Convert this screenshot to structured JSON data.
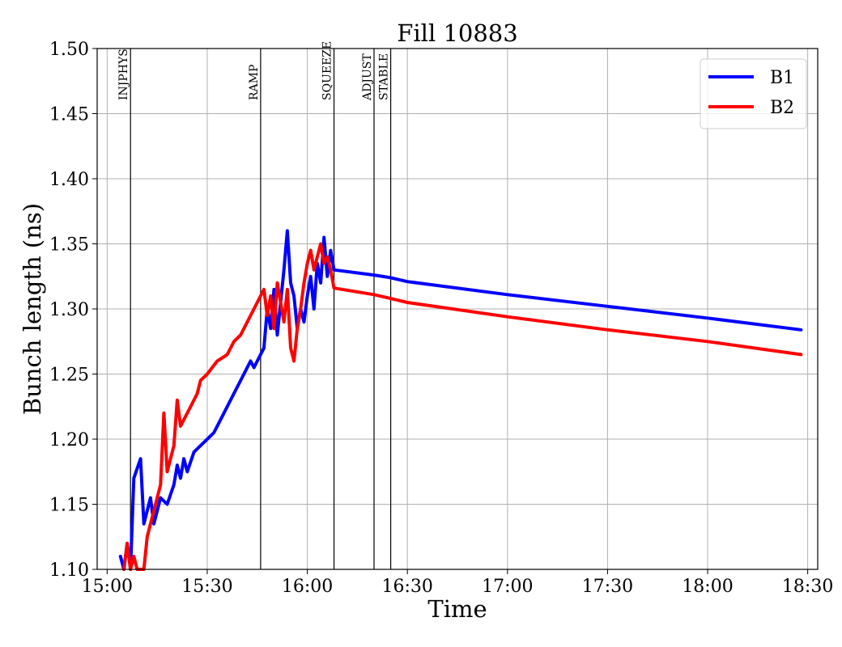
{
  "chart_data": {
    "type": "line",
    "title": "Fill 10883",
    "xlabel": "Time",
    "ylabel": "Bunch length (ns)",
    "x_tick_labels": [
      "15:00",
      "15:30",
      "16:00",
      "16:30",
      "17:00",
      "17:30",
      "18:00",
      "18:30"
    ],
    "x_tick_values": [
      "15:00",
      "15:30",
      "16:00",
      "16:30",
      "17:00",
      "17:30",
      "18:00",
      "18:30"
    ],
    "xlim": [
      "14:57",
      "18:33"
    ],
    "y_tick_labels": [
      "1.10",
      "1.15",
      "1.20",
      "1.25",
      "1.30",
      "1.35",
      "1.40",
      "1.45",
      "1.50"
    ],
    "ylim": [
      1.1,
      1.5
    ],
    "grid": true,
    "legend_position": "top-right",
    "mode_markers": [
      {
        "label": "INJPHYS",
        "time": "15:07"
      },
      {
        "label": "RAMP",
        "time": "15:46"
      },
      {
        "label": "SQUEEZE",
        "time": "16:08"
      },
      {
        "label": "ADJUST",
        "time": "16:20"
      },
      {
        "label": "STABLE",
        "time": "16:25"
      }
    ],
    "series": [
      {
        "name": "B1",
        "color": "#0000ff",
        "points": [
          [
            "15:04",
            1.11
          ],
          [
            "15:05",
            1.1
          ],
          [
            "15:06",
            1.12
          ],
          [
            "15:07",
            1.1
          ],
          [
            "15:08",
            1.17
          ],
          [
            "15:10",
            1.185
          ],
          [
            "15:11",
            1.135
          ],
          [
            "15:13",
            1.155
          ],
          [
            "15:14",
            1.135
          ],
          [
            "15:16",
            1.155
          ],
          [
            "15:18",
            1.15
          ],
          [
            "15:20",
            1.165
          ],
          [
            "15:21",
            1.18
          ],
          [
            "15:22",
            1.17
          ],
          [
            "15:23",
            1.185
          ],
          [
            "15:24",
            1.175
          ],
          [
            "15:26",
            1.19
          ],
          [
            "15:28",
            1.195
          ],
          [
            "15:30",
            1.2
          ],
          [
            "15:32",
            1.205
          ],
          [
            "15:35",
            1.22
          ],
          [
            "15:38",
            1.235
          ],
          [
            "15:40",
            1.245
          ],
          [
            "15:43",
            1.26
          ],
          [
            "15:44",
            1.255
          ],
          [
            "15:45",
            1.26
          ],
          [
            "15:46",
            1.265
          ],
          [
            "15:47",
            1.27
          ],
          [
            "15:48",
            1.3
          ],
          [
            "15:49",
            1.285
          ],
          [
            "15:50",
            1.315
          ],
          [
            "15:51",
            1.28
          ],
          [
            "15:52",
            1.305
          ],
          [
            "15:53",
            1.33
          ],
          [
            "15:54",
            1.36
          ],
          [
            "15:55",
            1.32
          ],
          [
            "15:56",
            1.31
          ],
          [
            "15:57",
            1.285
          ],
          [
            "15:58",
            1.3
          ],
          [
            "15:59",
            1.29
          ],
          [
            "16:00",
            1.31
          ],
          [
            "16:01",
            1.325
          ],
          [
            "16:02",
            1.3
          ],
          [
            "16:03",
            1.335
          ],
          [
            "16:04",
            1.32
          ],
          [
            "16:05",
            1.355
          ],
          [
            "16:06",
            1.325
          ],
          [
            "16:07",
            1.345
          ],
          [
            "16:08",
            1.33
          ],
          [
            "16:20",
            1.326
          ],
          [
            "16:25",
            1.324
          ],
          [
            "16:30",
            1.321
          ],
          [
            "17:00",
            1.311
          ],
          [
            "17:30",
            1.302
          ],
          [
            "18:00",
            1.293
          ],
          [
            "18:28",
            1.284
          ]
        ]
      },
      {
        "name": "B2",
        "color": "#ff0000",
        "points": [
          [
            "15:05",
            1.1
          ],
          [
            "15:06",
            1.12
          ],
          [
            "15:07",
            1.1
          ],
          [
            "15:08",
            1.11
          ],
          [
            "15:09",
            1.1
          ],
          [
            "15:11",
            1.1
          ],
          [
            "15:12",
            1.125
          ],
          [
            "15:14",
            1.145
          ],
          [
            "15:16",
            1.165
          ],
          [
            "15:17",
            1.22
          ],
          [
            "15:18",
            1.175
          ],
          [
            "15:19",
            1.185
          ],
          [
            "15:20",
            1.195
          ],
          [
            "15:21",
            1.23
          ],
          [
            "15:22",
            1.21
          ],
          [
            "15:25",
            1.225
          ],
          [
            "15:27",
            1.235
          ],
          [
            "15:28",
            1.245
          ],
          [
            "15:30",
            1.25
          ],
          [
            "15:33",
            1.26
          ],
          [
            "15:36",
            1.265
          ],
          [
            "15:38",
            1.275
          ],
          [
            "15:40",
            1.28
          ],
          [
            "15:43",
            1.295
          ],
          [
            "15:46",
            1.31
          ],
          [
            "15:47",
            1.315
          ],
          [
            "15:48",
            1.295
          ],
          [
            "15:49",
            1.31
          ],
          [
            "15:50",
            1.285
          ],
          [
            "15:51",
            1.32
          ],
          [
            "15:52",
            1.305
          ],
          [
            "15:53",
            1.29
          ],
          [
            "15:54",
            1.315
          ],
          [
            "15:55",
            1.27
          ],
          [
            "15:56",
            1.26
          ],
          [
            "15:57",
            1.285
          ],
          [
            "15:58",
            1.3
          ],
          [
            "15:59",
            1.32
          ],
          [
            "16:00",
            1.335
          ],
          [
            "16:01",
            1.345
          ],
          [
            "16:02",
            1.33
          ],
          [
            "16:03",
            1.34
          ],
          [
            "16:04",
            1.35
          ],
          [
            "16:05",
            1.335
          ],
          [
            "16:06",
            1.34
          ],
          [
            "16:07",
            1.33
          ],
          [
            "16:08",
            1.316
          ],
          [
            "16:20",
            1.311
          ],
          [
            "16:25",
            1.308
          ],
          [
            "16:30",
            1.305
          ],
          [
            "17:00",
            1.294
          ],
          [
            "17:30",
            1.284
          ],
          [
            "18:00",
            1.275
          ],
          [
            "18:28",
            1.265
          ]
        ]
      }
    ]
  }
}
